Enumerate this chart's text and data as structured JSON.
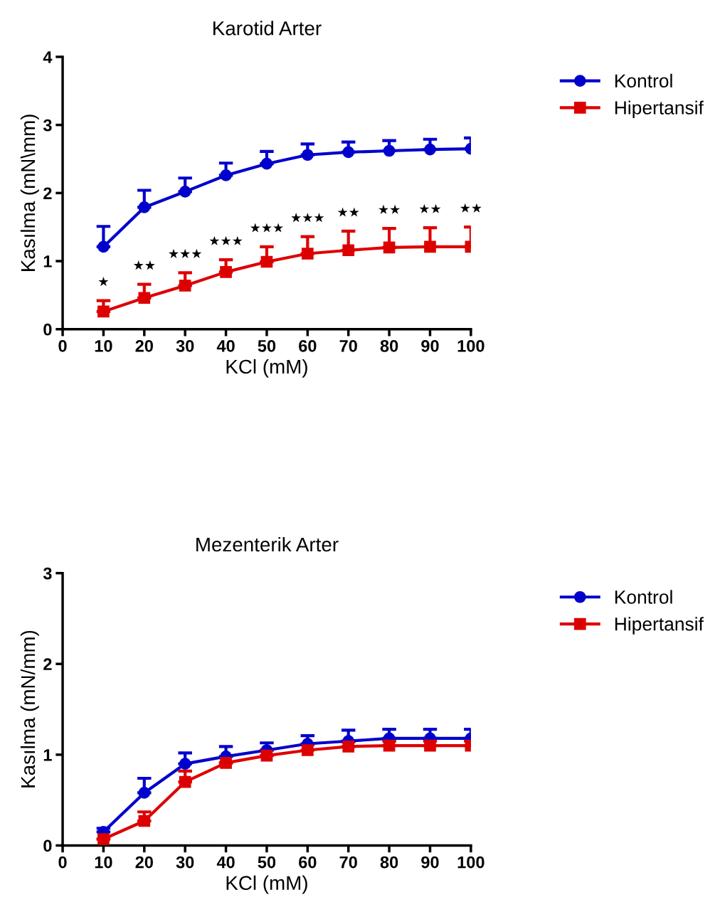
{
  "chart_data": [
    {
      "type": "line",
      "title": "Karotid Arter",
      "xlabel": "KCl (mM)",
      "ylabel": "Kasılma (mN\\mm)",
      "x": [
        10,
        20,
        30,
        40,
        50,
        60,
        70,
        80,
        90,
        100
      ],
      "xlim": [
        0,
        100
      ],
      "xticks": [
        0,
        10,
        20,
        30,
        40,
        50,
        60,
        70,
        80,
        90,
        100
      ],
      "ylim": [
        0,
        4
      ],
      "yticks": [
        0,
        1,
        2,
        3,
        4
      ],
      "grid": false,
      "legend": "right",
      "line_style": "solid",
      "series": [
        {
          "name": "Kontrol",
          "color": "#0000cc",
          "marker": "circle",
          "values": [
            1.21,
            1.79,
            2.02,
            2.26,
            2.43,
            2.56,
            2.6,
            2.62,
            2.64,
            2.65
          ],
          "errors": [
            [
              1.21,
              1.51
            ],
            [
              1.79,
              2.04
            ],
            [
              2.02,
              2.22
            ],
            [
              2.26,
              2.44
            ],
            [
              2.43,
              2.61
            ],
            [
              2.56,
              2.72
            ],
            [
              2.6,
              2.75
            ],
            [
              2.62,
              2.77
            ],
            [
              2.64,
              2.79
            ],
            [
              2.65,
              2.81
            ]
          ]
        },
        {
          "name": "Hipertansif",
          "color": "#dd0000",
          "marker": "square",
          "values": [
            0.26,
            0.46,
            0.64,
            0.84,
            0.99,
            1.11,
            1.16,
            1.2,
            1.21,
            1.21
          ],
          "errors": [
            [
              0.26,
              0.42
            ],
            [
              0.46,
              0.66
            ],
            [
              0.64,
              0.83
            ],
            [
              0.84,
              1.02
            ],
            [
              0.99,
              1.21
            ],
            [
              1.11,
              1.36
            ],
            [
              1.16,
              1.44
            ],
            [
              1.2,
              1.48
            ],
            [
              1.21,
              1.49
            ],
            [
              1.21,
              1.5
            ]
          ]
        }
      ],
      "annotations": [
        "★",
        "★★",
        "★★★",
        "★★★",
        "★★★",
        "★★★",
        "★★",
        "★★",
        "★★",
        "★★"
      ]
    },
    {
      "type": "line",
      "title": "Mezenterik Arter",
      "xlabel": "KCl (mM)",
      "ylabel": "Kasılma (mN/mm)",
      "x": [
        10,
        20,
        30,
        40,
        50,
        60,
        70,
        80,
        90,
        100
      ],
      "xlim": [
        0,
        100
      ],
      "xticks": [
        0,
        10,
        20,
        30,
        40,
        50,
        60,
        70,
        80,
        90,
        100
      ],
      "ylim": [
        0,
        3
      ],
      "yticks": [
        0,
        1,
        2,
        3
      ],
      "grid": false,
      "legend": "right",
      "line_style": "solid",
      "series": [
        {
          "name": "Kontrol",
          "color": "#0000cc",
          "marker": "circle",
          "values": [
            0.15,
            0.58,
            0.9,
            0.98,
            1.05,
            1.12,
            1.15,
            1.18,
            1.18,
            1.18
          ],
          "errors": [
            [
              0.15,
              0.19
            ],
            [
              0.58,
              0.74
            ],
            [
              0.9,
              1.02
            ],
            [
              0.98,
              1.09
            ],
            [
              1.05,
              1.13
            ],
            [
              1.12,
              1.21
            ],
            [
              1.15,
              1.27
            ],
            [
              1.18,
              1.28
            ],
            [
              1.18,
              1.28
            ],
            [
              1.18,
              1.28
            ]
          ]
        },
        {
          "name": "Hipertansif",
          "color": "#dd0000",
          "marker": "square",
          "values": [
            0.07,
            0.27,
            0.7,
            0.91,
            0.99,
            1.05,
            1.09,
            1.1,
            1.1,
            1.1
          ],
          "errors": [
            null,
            [
              0.27,
              0.37
            ],
            [
              0.7,
              0.82
            ],
            null,
            [
              0.99,
              1.05
            ],
            [
              1.05,
              1.11
            ],
            [
              1.09,
              1.14
            ],
            [
              1.1,
              1.15
            ],
            [
              1.1,
              1.15
            ],
            [
              1.1,
              1.15
            ]
          ]
        }
      ]
    }
  ]
}
